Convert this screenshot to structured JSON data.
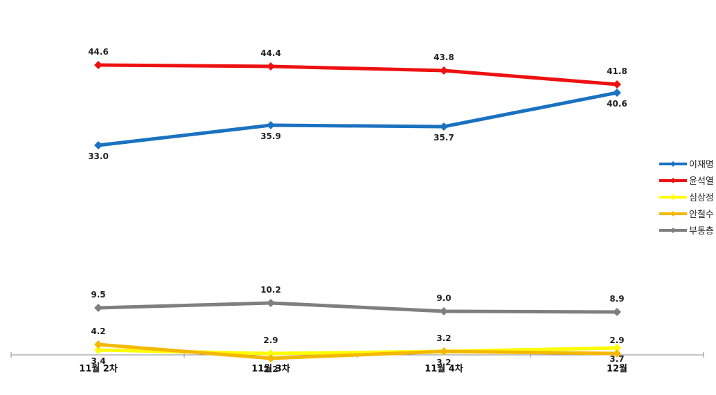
{
  "chart_data": {
    "type": "line",
    "categories": [
      "11월 2차",
      "11월 3차",
      "11월 4차",
      "12월"
    ],
    "series": [
      {
        "name": "이재명",
        "color": "#1a72c0",
        "values": [
          33.0,
          35.9,
          35.7,
          40.6
        ],
        "labels": [
          "33.0",
          "35.9",
          "35.7",
          "40.6"
        ],
        "label_pos": [
          "below",
          "below",
          "below",
          "below"
        ]
      },
      {
        "name": "윤석열",
        "color": "#ee1111",
        "values": [
          44.6,
          44.4,
          43.8,
          41.8
        ],
        "labels": [
          "44.6",
          "44.4",
          "43.8",
          "41.8"
        ],
        "label_pos": [
          "above",
          "above",
          "above",
          "above"
        ]
      },
      {
        "name": "심상정",
        "color": "#ffff00",
        "values": [
          3.4,
          2.9,
          3.2,
          3.7
        ],
        "labels": [
          "3.4",
          "2.9",
          "3.2",
          "3.7"
        ],
        "label_pos": [
          "below",
          "above",
          "below",
          "below"
        ]
      },
      {
        "name": "안철수",
        "color": "#f5b800",
        "values": [
          4.2,
          2.2,
          3.2,
          2.9
        ],
        "labels": [
          "4.2",
          "2.2",
          "3.2",
          "2.9"
        ],
        "label_pos": [
          "above",
          "below",
          "above",
          "above"
        ]
      },
      {
        "name": "부동층",
        "color": "#7f7f7f",
        "values": [
          9.5,
          10.2,
          9.0,
          8.9
        ],
        "labels": [
          "9.5",
          "10.2",
          "9.0",
          "8.9"
        ],
        "label_pos": [
          "above",
          "above",
          "above",
          "above"
        ]
      }
    ],
    "ylim": [
      0,
      50
    ],
    "grid": false,
    "legend": "right",
    "title": "",
    "xlabel": "",
    "ylabel": ""
  }
}
